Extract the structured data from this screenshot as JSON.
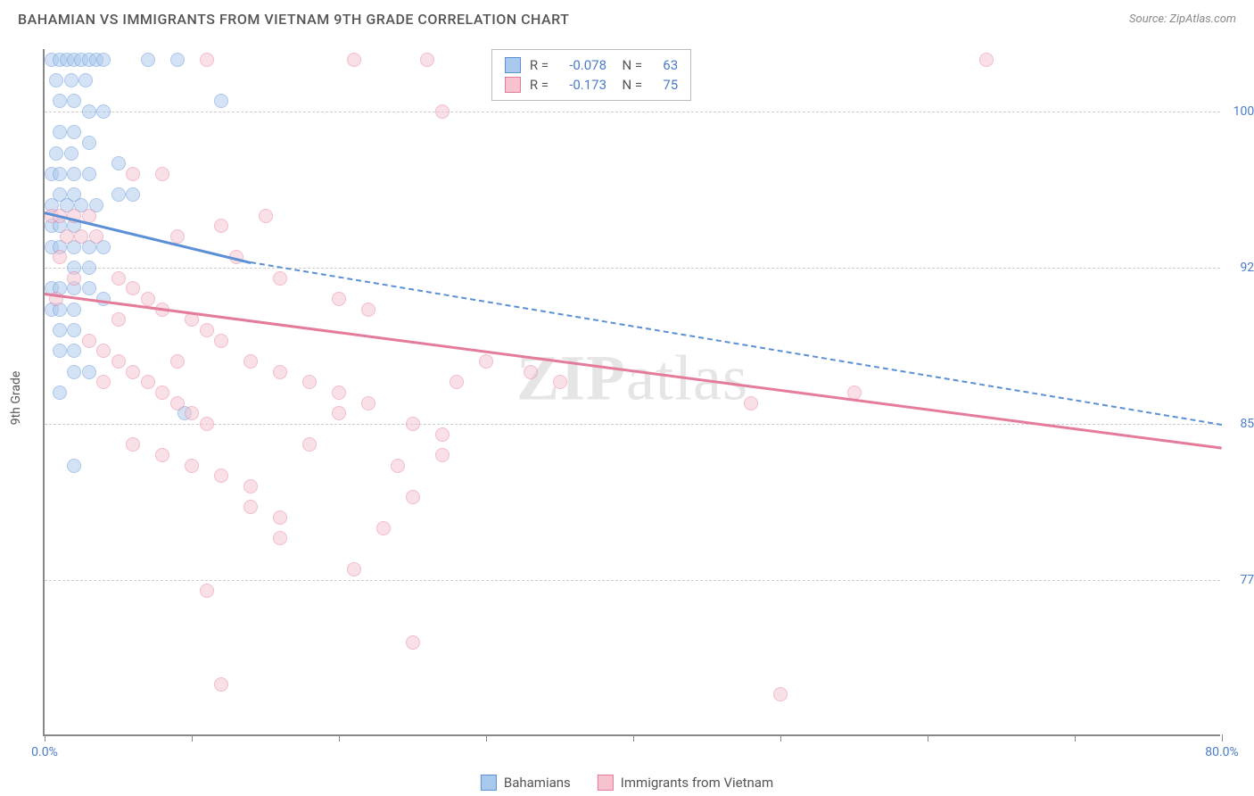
{
  "header": {
    "title": "BAHAMIAN VS IMMIGRANTS FROM VIETNAM 9TH GRADE CORRELATION CHART",
    "source": "Source: ZipAtlas.com"
  },
  "chart": {
    "type": "scatter",
    "y_axis_label": "9th Grade",
    "xlim": [
      0,
      80
    ],
    "ylim": [
      70,
      103
    ],
    "x_ticks": [
      0,
      10,
      20,
      30,
      40,
      50,
      60,
      70,
      80
    ],
    "x_tick_labels": {
      "0": "0.0%",
      "80": "80.0%"
    },
    "y_gridlines": [
      77.5,
      85.0,
      92.5,
      100.0
    ],
    "y_tick_labels": [
      "77.5%",
      "85.0%",
      "92.5%",
      "100.0%"
    ],
    "background_color": "#ffffff",
    "grid_color": "#cccccc",
    "axis_color": "#888888",
    "tick_label_color": "#4a7bc8",
    "point_radius": 8,
    "point_opacity": 0.5,
    "series": [
      {
        "key": "bahamians",
        "label": "Bahamians",
        "fill_color": "#a8c8ec",
        "stroke_color": "#5b8fd6",
        "R": "-0.078",
        "N": "63",
        "trend": {
          "x1": 0,
          "y1": 95.2,
          "x2": 14,
          "y2": 92.8,
          "x2_dash": 80,
          "y2_dash": 85.0
        },
        "points": [
          [
            0.5,
            102.5
          ],
          [
            1,
            102.5
          ],
          [
            1.5,
            102.5
          ],
          [
            2,
            102.5
          ],
          [
            2.5,
            102.5
          ],
          [
            3,
            102.5
          ],
          [
            3.5,
            102.5
          ],
          [
            4,
            102.5
          ],
          [
            7,
            102.5
          ],
          [
            9,
            102.5
          ],
          [
            1,
            100.5
          ],
          [
            2,
            100.5
          ],
          [
            3,
            100
          ],
          [
            4,
            100
          ],
          [
            1,
            99
          ],
          [
            2,
            99
          ],
          [
            3,
            98.5
          ],
          [
            0.5,
            97
          ],
          [
            1,
            97
          ],
          [
            2,
            97
          ],
          [
            3,
            97
          ],
          [
            1,
            96
          ],
          [
            2,
            96
          ],
          [
            5,
            96
          ],
          [
            6,
            96
          ],
          [
            3.5,
            95.5
          ],
          [
            0.5,
            94.5
          ],
          [
            1,
            94.5
          ],
          [
            2,
            94.5
          ],
          [
            0.5,
            93.5
          ],
          [
            1,
            93.5
          ],
          [
            2,
            93.5
          ],
          [
            3,
            93.5
          ],
          [
            4,
            93.5
          ],
          [
            2,
            92.5
          ],
          [
            3,
            92.5
          ],
          [
            0.5,
            91.5
          ],
          [
            1,
            91.5
          ],
          [
            2,
            91.5
          ],
          [
            3,
            91.5
          ],
          [
            0.5,
            90.5
          ],
          [
            1,
            90.5
          ],
          [
            2,
            90.5
          ],
          [
            1,
            89.5
          ],
          [
            2,
            89.5
          ],
          [
            1,
            88.5
          ],
          [
            2,
            88.5
          ],
          [
            2,
            87.5
          ],
          [
            3,
            87.5
          ],
          [
            1,
            86.5
          ],
          [
            9.5,
            85.5
          ],
          [
            2,
            83
          ],
          [
            12,
            100.5
          ],
          [
            0.8,
            101.5
          ],
          [
            1.8,
            101.5
          ],
          [
            2.8,
            101.5
          ],
          [
            0.8,
            98
          ],
          [
            1.8,
            98
          ],
          [
            5,
            97.5
          ],
          [
            0.5,
            95.5
          ],
          [
            1.5,
            95.5
          ],
          [
            2.5,
            95.5
          ],
          [
            4,
            91
          ]
        ]
      },
      {
        "key": "vietnam",
        "label": "Immigrants from Vietnam",
        "fill_color": "#f5c2ce",
        "stroke_color": "#e57b9a",
        "R": "-0.173",
        "N": "75",
        "trend": {
          "x1": 0,
          "y1": 91.3,
          "x2": 80,
          "y2": 83.9
        },
        "points": [
          [
            11,
            102.5
          ],
          [
            21,
            102.5
          ],
          [
            26,
            102.5
          ],
          [
            64,
            102.5
          ],
          [
            27,
            100
          ],
          [
            0.5,
            95
          ],
          [
            1,
            95
          ],
          [
            2,
            95
          ],
          [
            3,
            95
          ],
          [
            1.5,
            94
          ],
          [
            2.5,
            94
          ],
          [
            3.5,
            94
          ],
          [
            8,
            97
          ],
          [
            12,
            94.5
          ],
          [
            15,
            95
          ],
          [
            5,
            92
          ],
          [
            6,
            91.5
          ],
          [
            7,
            91
          ],
          [
            8,
            90.5
          ],
          [
            10,
            90
          ],
          [
            11,
            89.5
          ],
          [
            12,
            89
          ],
          [
            16,
            92
          ],
          [
            4,
            88.5
          ],
          [
            5,
            88
          ],
          [
            6,
            87.5
          ],
          [
            7,
            87
          ],
          [
            8,
            86.5
          ],
          [
            9,
            86
          ],
          [
            10,
            85.5
          ],
          [
            11,
            85
          ],
          [
            20,
            91
          ],
          [
            22,
            90.5
          ],
          [
            14,
            88
          ],
          [
            16,
            87.5
          ],
          [
            18,
            87
          ],
          [
            20,
            86.5
          ],
          [
            22,
            86
          ],
          [
            28,
            87
          ],
          [
            30,
            88
          ],
          [
            33,
            87.5
          ],
          [
            6,
            84
          ],
          [
            8,
            83.5
          ],
          [
            10,
            83
          ],
          [
            12,
            82.5
          ],
          [
            14,
            82
          ],
          [
            18,
            84
          ],
          [
            20,
            85.5
          ],
          [
            25,
            85
          ],
          [
            27,
            84.5
          ],
          [
            27,
            83.5
          ],
          [
            24,
            83
          ],
          [
            14,
            81
          ],
          [
            16,
            80.5
          ],
          [
            16,
            79.5
          ],
          [
            23,
            80
          ],
          [
            25,
            81.5
          ],
          [
            21,
            78
          ],
          [
            11,
            77
          ],
          [
            12,
            72.5
          ],
          [
            25,
            74.5
          ],
          [
            50,
            72
          ],
          [
            5,
            90
          ],
          [
            3,
            89
          ],
          [
            4,
            87
          ],
          [
            13,
            93
          ],
          [
            9,
            94
          ],
          [
            1,
            93
          ],
          [
            2,
            92
          ],
          [
            0.8,
            91
          ],
          [
            48,
            86
          ],
          [
            55,
            86.5
          ],
          [
            35,
            87
          ],
          [
            6,
            97
          ],
          [
            9,
            88
          ]
        ]
      }
    ],
    "stats_box": {
      "left_pct": 38,
      "top_pct": 0
    },
    "watermark": {
      "text_bold": "ZIP",
      "text_light": "atlas"
    }
  },
  "legend": {
    "items": [
      "Bahamians",
      "Immigrants from Vietnam"
    ]
  }
}
